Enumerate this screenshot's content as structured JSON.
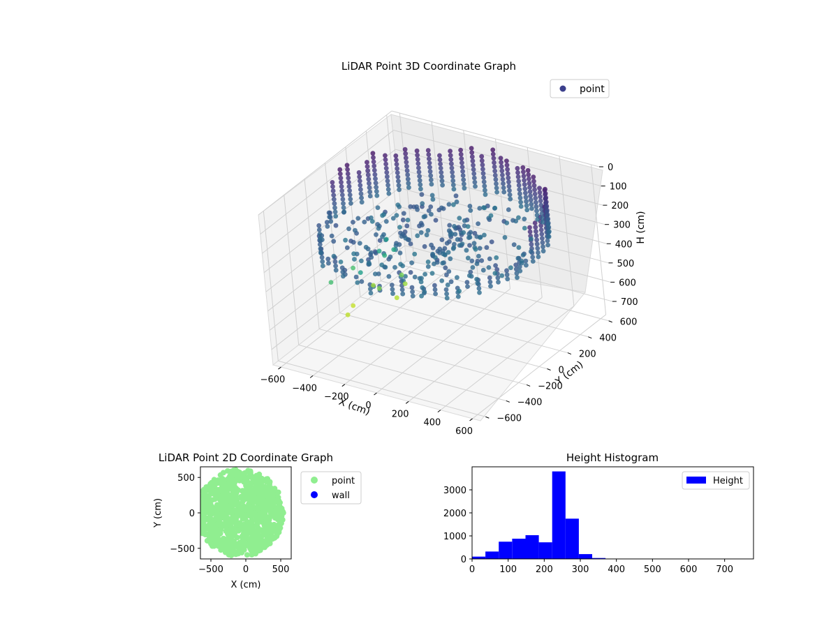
{
  "chart_data": [
    {
      "type": "scatter",
      "projection": "3d",
      "title": "LiDAR Point 3D Coordinate Graph",
      "xlabel": "X (cm)",
      "ylabel": "Y (cm)",
      "zlabel": "H (cm)",
      "xlim": [
        -650,
        650
      ],
      "ylim": [
        -650,
        650
      ],
      "zlim": [
        780,
        0
      ],
      "z_inverted": true,
      "xticks": [
        "−600",
        "−400",
        "−200",
        "0",
        "200",
        "400",
        "600"
      ],
      "yticks": [
        "−600",
        "−400",
        "−200",
        "0",
        "200",
        "400",
        "600"
      ],
      "zticks": [
        "0",
        "100",
        "200",
        "300",
        "400",
        "500",
        "600",
        "700"
      ],
      "colormap": "viridis",
      "grid": true,
      "legend": {
        "position": "top-right",
        "entries": [
          {
            "label": "point",
            "color": "#3b3f8c"
          }
        ]
      },
      "series": [
        {
          "name": "point",
          "shape": "cylindrical wall scan",
          "radius_cm": [
            560,
            640
          ],
          "height_cm": [
            0,
            780
          ],
          "sample_points": [
            {
              "x": 0,
              "y": 600,
              "h": 60
            },
            {
              "x": 600,
              "y": 0,
              "h": 230
            },
            {
              "x": 0,
              "y": -600,
              "h": 250
            },
            {
              "x": -560,
              "y": 120,
              "h": 120
            },
            {
              "x": -300,
              "y": -400,
              "h": 260
            },
            {
              "x": 300,
              "y": 450,
              "h": 270
            },
            {
              "x": -450,
              "y": 300,
              "h": 60
            },
            {
              "x": 0,
              "y": 0,
              "h": 280
            }
          ]
        }
      ]
    },
    {
      "type": "scatter",
      "title": "LiDAR Point 2D Coordinate Graph",
      "xlabel": "X (cm)",
      "ylabel": "Y (cm)",
      "xlim": [
        -650,
        650
      ],
      "ylim": [
        -650,
        650
      ],
      "xticks": [
        "−500",
        "0",
        "500"
      ],
      "yticks": [
        "−500",
        "0",
        "500"
      ],
      "legend": {
        "position": "outside-right",
        "entries": [
          {
            "label": "point",
            "color": "#90ee90"
          },
          {
            "label": "wall",
            "color": "#0000ff"
          }
        ]
      },
      "series": [
        {
          "name": "point",
          "color": "#90ee90",
          "shape": "disc",
          "center": [
            -80,
            0
          ],
          "radius_cm": 620
        },
        {
          "name": "wall",
          "color": "#0000ff",
          "values": []
        }
      ]
    },
    {
      "type": "bar",
      "histogram": true,
      "title": "Height Histogram",
      "xlabel": "",
      "ylabel": "",
      "xlim": [
        0,
        780
      ],
      "ylim": [
        0,
        4000
      ],
      "xticks": [
        "0",
        "100",
        "200",
        "300",
        "400",
        "500",
        "600",
        "700"
      ],
      "yticks": [
        "0",
        "1000",
        "2000",
        "3000"
      ],
      "legend": {
        "position": "top-right",
        "entries": [
          {
            "label": "Height",
            "color": "#0000ff"
          }
        ]
      },
      "series": [
        {
          "name": "Height",
          "color": "#0000ff",
          "bin_edges": [
            0,
            37,
            74,
            111,
            148,
            185,
            222,
            259,
            296,
            333,
            370,
            407,
            444,
            481,
            518,
            555,
            592,
            629,
            666,
            703,
            740,
            777
          ],
          "counts": [
            100,
            320,
            750,
            880,
            1030,
            720,
            3800,
            1750,
            210,
            40,
            10,
            5,
            5,
            3,
            3,
            2,
            2,
            2,
            1,
            1,
            1
          ]
        }
      ]
    }
  ]
}
